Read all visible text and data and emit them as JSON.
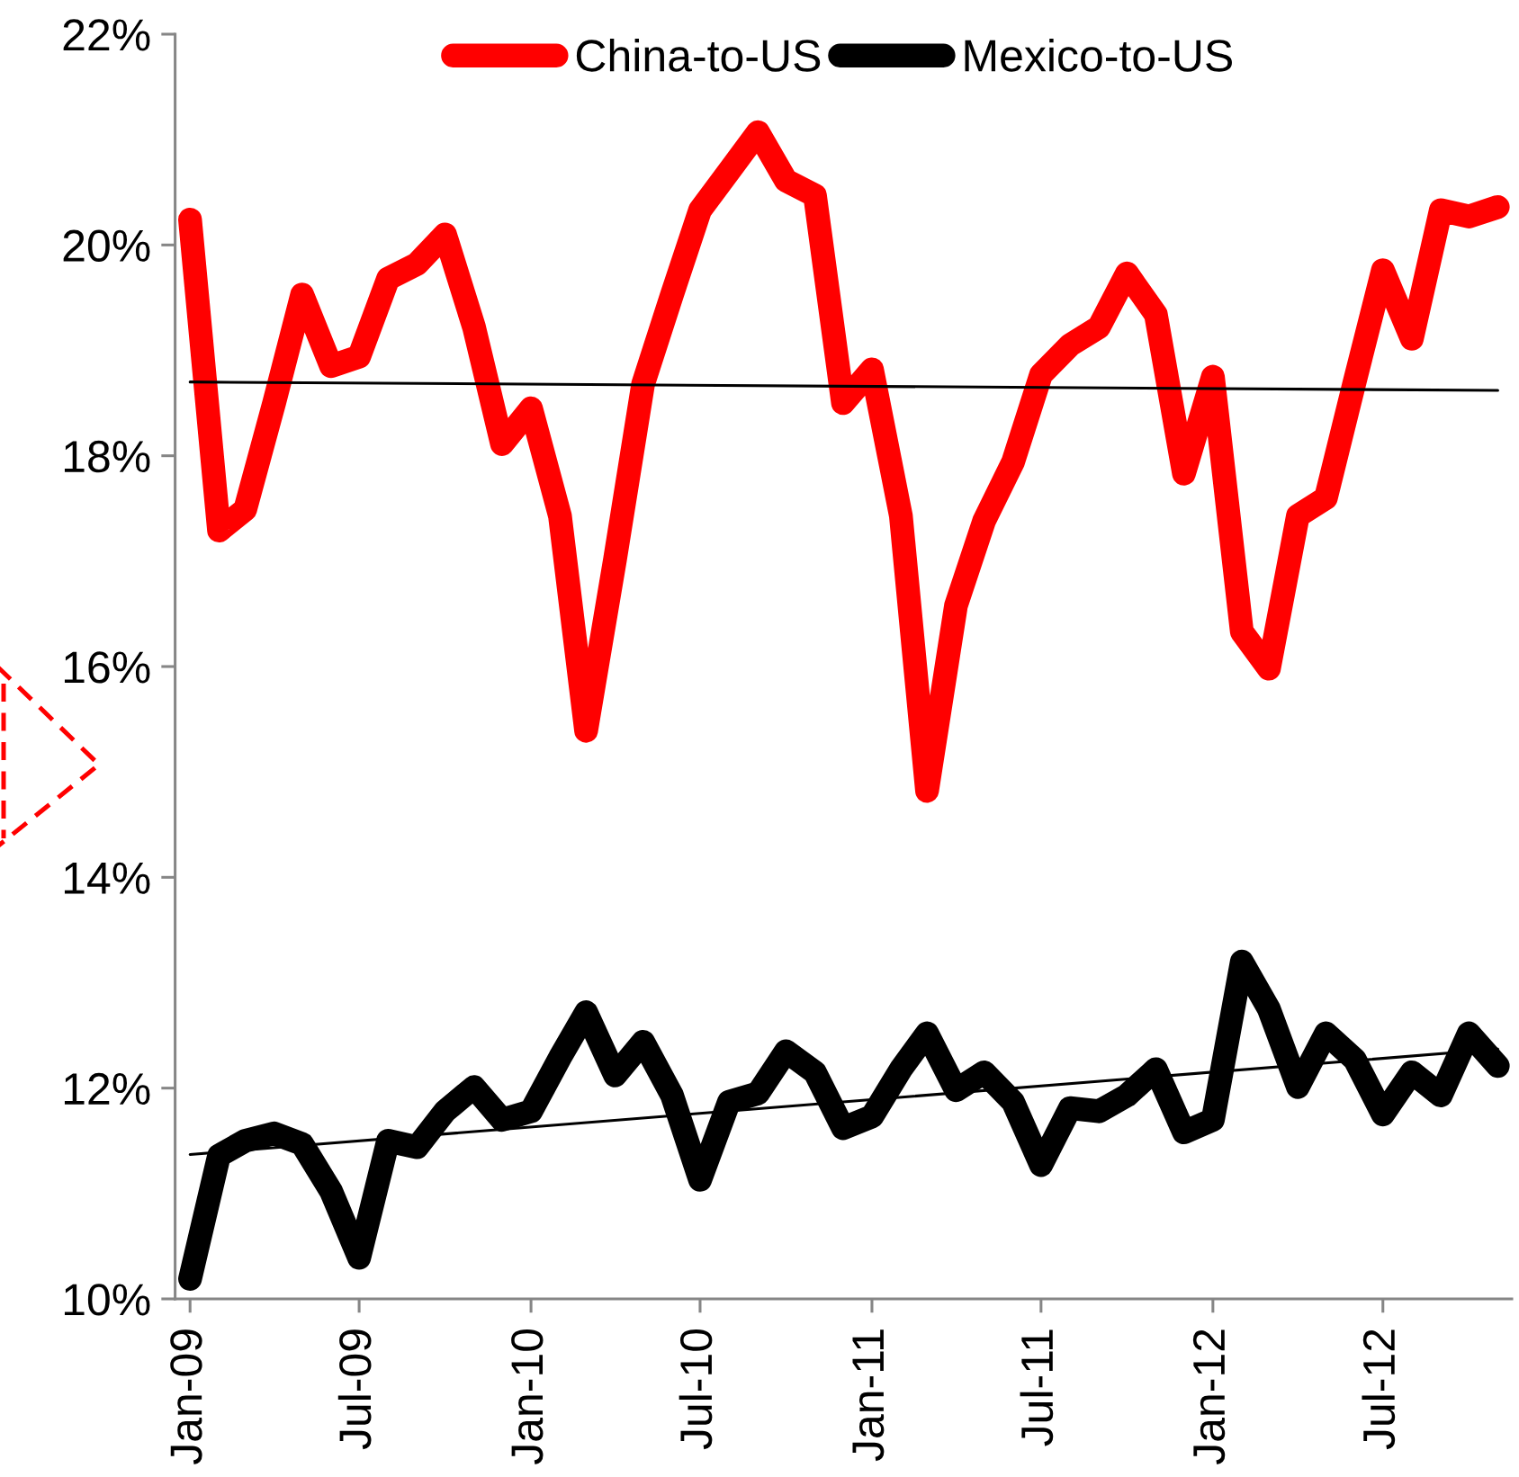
{
  "chart_data": {
    "type": "line",
    "x": [
      "2009-01",
      "2009-02",
      "2009-03",
      "2009-04",
      "2009-05",
      "2009-06",
      "2009-07",
      "2009-08",
      "2009-09",
      "2009-10",
      "2009-11",
      "2009-12",
      "2010-01",
      "2010-02",
      "2010-03",
      "2010-04",
      "2010-05",
      "2010-06",
      "2010-07",
      "2010-08",
      "2010-09",
      "2010-10",
      "2010-11",
      "2010-12",
      "2011-01",
      "2011-02",
      "2011-03",
      "2011-04",
      "2011-05",
      "2011-06",
      "2011-07",
      "2011-08",
      "2011-09",
      "2011-10",
      "2011-11",
      "2011-12",
      "2012-01",
      "2012-02",
      "2012-03",
      "2012-04",
      "2012-05",
      "2012-06",
      "2012-07",
      "2012-08",
      "2012-09",
      "2012-10",
      "2012-11"
    ],
    "series": [
      {
        "name": "China-to-US",
        "color": "#ff0000",
        "values": [
          20.24,
          17.29,
          17.49,
          18.5,
          19.53,
          18.85,
          18.94,
          19.68,
          19.82,
          20.1,
          19.22,
          18.11,
          18.45,
          17.43,
          15.39,
          17.02,
          18.68,
          19.53,
          20.33,
          20.7,
          21.07,
          20.61,
          20.47,
          18.5,
          18.82,
          17.43,
          14.82,
          16.58,
          17.38,
          17.94,
          18.77,
          19.05,
          19.22,
          19.73,
          19.34,
          17.83,
          18.75,
          16.33,
          15.98,
          17.43,
          17.6,
          18.71,
          19.76,
          19.11,
          20.33,
          20.27,
          20.36
        ]
      },
      {
        "name": "Mexico-to-US",
        "color": "#000000",
        "values": [
          10.19,
          11.36,
          11.5,
          11.57,
          11.47,
          11.02,
          10.39,
          11.5,
          11.44,
          11.78,
          12.01,
          11.7,
          11.78,
          12.29,
          12.72,
          12.12,
          12.44,
          11.93,
          11.13,
          11.87,
          11.95,
          12.35,
          12.15,
          11.62,
          11.73,
          12.18,
          12.52,
          11.98,
          12.15,
          11.87,
          11.27,
          11.81,
          11.78,
          11.93,
          12.18,
          11.58,
          11.7,
          13.2,
          12.75,
          12.01,
          12.52,
          12.27,
          11.75,
          12.15,
          11.93,
          12.52,
          12.21
        ]
      },
      {
        "type": "line",
        "color": "#000000",
        "x": [
          "2009-01",
          "2012-11"
        ],
        "values": [
          18.7,
          18.62
        ]
      },
      {
        "type": "line",
        "color": "#000000",
        "x": [
          "2009-01",
          "2012-11"
        ],
        "values": [
          11.37,
          12.37
        ]
      }
    ],
    "xlim": [
      "2008-12-16",
      "2012-11-16"
    ],
    "xticks": [
      {
        "value": "2009-01",
        "label": "Jan-09"
      },
      {
        "value": "2009-07",
        "label": "Jul-09"
      },
      {
        "value": "2010-01",
        "label": "Jan-10"
      },
      {
        "value": "2010-07",
        "label": "Jul-10"
      },
      {
        "value": "2011-01",
        "label": "Jan-11"
      },
      {
        "value": "2011-07",
        "label": "Jul-11"
      },
      {
        "value": "2012-01",
        "label": "Jan-12"
      },
      {
        "value": "2012-07",
        "label": "Jul-12"
      }
    ],
    "ylim": [
      10,
      22
    ],
    "yticks": [
      {
        "value": 10,
        "label": "10%"
      },
      {
        "value": 12,
        "label": "12%"
      },
      {
        "value": 14,
        "label": "14%"
      },
      {
        "value": 16,
        "label": "16%"
      },
      {
        "value": 18,
        "label": "18%"
      },
      {
        "value": 20,
        "label": "20%"
      },
      {
        "value": 22,
        "label": "22%"
      }
    ],
    "grid": false,
    "legend": "top",
    "line_style": "solid"
  }
}
